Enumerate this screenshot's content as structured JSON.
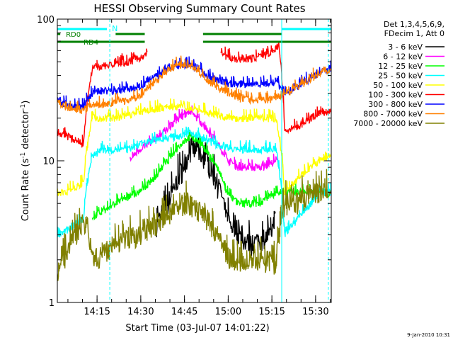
{
  "chart_data": {
    "type": "line",
    "title": "HESSI Observing Summary Count Rates",
    "xlabel": "Start Time (03-Jul-07 14:01:22)",
    "ylabel_main": "Count Rate (s",
    "ylabel_exp1": "-1",
    "ylabel_mid": " detector",
    "ylabel_exp2": "-1",
    "ylabel_end": ")",
    "yscale": "log",
    "ylim": [
      1,
      100
    ],
    "xlim_minutes": [
      0,
      94
    ],
    "y_ticks": [
      {
        "v": 1,
        "label": "1"
      },
      {
        "v": 10,
        "label": "10"
      },
      {
        "v": 100,
        "label": "100"
      }
    ],
    "x_ticks": [
      {
        "m": 13.63,
        "label": "14:15"
      },
      {
        "m": 28.63,
        "label": "14:30"
      },
      {
        "m": 43.63,
        "label": "14:45"
      },
      {
        "m": 58.63,
        "label": "15:00"
      },
      {
        "m": 73.63,
        "label": "15:15"
      },
      {
        "m": 88.63,
        "label": "15:30"
      }
    ],
    "legend_header": [
      "Det 1,3,4,5,6,9,",
      "FDecim 1, Att 0"
    ],
    "series": [
      {
        "name": "3 - 6 keV",
        "color": "#000000",
        "x": [
          0,
          34,
          38,
          42,
          45,
          48,
          51,
          56,
          58,
          62,
          66,
          70,
          73,
          75,
          78
        ],
        "y": [
          null,
          3.5,
          5,
          8,
          11,
          12,
          10,
          6,
          4,
          3,
          2.6,
          2.8,
          3,
          4,
          null
        ]
      },
      {
        "name": "6 - 12 keV",
        "color": "#ff00ff",
        "x": [
          0,
          25,
          28,
          33,
          38,
          42,
          45,
          48,
          51,
          55,
          59,
          62,
          66,
          70,
          73,
          76,
          78
        ],
        "y": [
          null,
          10,
          12,
          14,
          17,
          20,
          22,
          20,
          17,
          13,
          10,
          9,
          9,
          9,
          9.5,
          10,
          null
        ]
      },
      {
        "name": "12 - 25 keV",
        "color": "#00ff00",
        "x": [
          9,
          12,
          16,
          20,
          24,
          28,
          33,
          38,
          42,
          45,
          48,
          52,
          56,
          58,
          62,
          66,
          70,
          72,
          76,
          80,
          86,
          90,
          94
        ],
        "y": [
          null,
          4,
          4.5,
          5,
          5.5,
          6,
          7.5,
          10,
          13,
          14.5,
          14,
          11,
          8,
          6,
          5,
          5,
          5,
          5.5,
          6,
          6,
          6,
          6,
          6
        ]
      },
      {
        "name": "25 - 50 keV",
        "color": "#00ffff",
        "x": [
          0,
          3,
          6,
          9,
          12,
          16,
          20,
          24,
          28,
          33,
          38,
          42,
          45,
          48,
          51,
          55,
          59,
          62,
          66,
          70,
          73,
          75,
          78,
          83,
          87,
          90,
          94
        ],
        "y": [
          3,
          3.2,
          3.5,
          4,
          11,
          12,
          12,
          12,
          13,
          14,
          14.5,
          15,
          16,
          15,
          14,
          13,
          12.5,
          12,
          12,
          12,
          12,
          12,
          3,
          4,
          5,
          6,
          6
        ]
      },
      {
        "name": "50 - 100 keV",
        "color": "#ffff00",
        "x": [
          0,
          3,
          6,
          9,
          12,
          16,
          20,
          24,
          28,
          33,
          38,
          42,
          45,
          48,
          51,
          55,
          59,
          62,
          66,
          70,
          73,
          75,
          78,
          81,
          84,
          87,
          90,
          94
        ],
        "y": [
          6,
          6,
          6.5,
          7,
          20,
          20,
          20,
          21,
          22,
          23,
          24,
          24,
          24,
          23,
          22,
          21,
          20,
          20,
          20,
          20,
          20,
          20,
          6,
          7,
          8,
          9,
          10,
          11
        ]
      },
      {
        "name": "100 - 300 keV",
        "color": "#ff0000",
        "x": [
          0,
          3,
          6,
          9,
          12,
          16,
          20,
          24,
          28,
          30,
          31,
          33,
          36,
          40,
          44,
          48,
          51,
          54,
          56,
          58,
          62,
          66,
          70,
          73,
          75,
          76,
          78,
          81,
          84,
          87,
          90,
          94
        ],
        "y": [
          16,
          15,
          14,
          13,
          45,
          47,
          48,
          50,
          52,
          55,
          60,
          null,
          null,
          null,
          null,
          null,
          null,
          null,
          60,
          55,
          52,
          52,
          55,
          58,
          62,
          65,
          16,
          17,
          18,
          20,
          22,
          22
        ]
      },
      {
        "name": "300 - 800 keV",
        "color": "#0000ff",
        "x": [
          0,
          3,
          6,
          9,
          12,
          16,
          20,
          24,
          28,
          33,
          38,
          42,
          45,
          48,
          51,
          55,
          59,
          62,
          66,
          70,
          73,
          75,
          78,
          81,
          84,
          87,
          90,
          94
        ],
        "y": [
          27,
          25,
          24,
          24,
          30,
          31,
          31,
          32,
          33,
          38,
          45,
          48,
          48,
          45,
          40,
          37,
          35,
          35,
          35,
          35,
          35,
          36,
          30,
          32,
          35,
          38,
          42,
          45
        ]
      },
      {
        "name": "800 - 7000 keV",
        "color": "#ff8000",
        "x": [
          0,
          3,
          6,
          9,
          12,
          16,
          20,
          24,
          28,
          33,
          38,
          42,
          45,
          48,
          51,
          55,
          59,
          62,
          66,
          70,
          73,
          75,
          78,
          81,
          84,
          87,
          90,
          94
        ],
        "y": [
          26,
          24,
          23,
          23,
          25,
          25,
          26,
          27,
          28,
          35,
          44,
          48,
          48,
          44,
          38,
          33,
          30,
          28,
          27,
          27,
          27,
          28,
          30,
          32,
          35,
          38,
          42,
          44
        ]
      },
      {
        "name": "7000 - 20000 keV",
        "color": "#808000",
        "x": [
          0,
          2,
          4,
          6,
          8,
          10,
          12,
          16,
          20,
          24,
          28,
          33,
          38,
          42,
          45,
          48,
          51,
          55,
          59,
          62,
          66,
          70,
          73,
          75,
          78,
          81,
          84,
          87,
          90,
          94
        ],
        "y": [
          1.5,
          2,
          2.5,
          3,
          3.5,
          3.8,
          2,
          2.2,
          2.5,
          2.8,
          3,
          3.5,
          4,
          5,
          5,
          4.5,
          4,
          3,
          2,
          2,
          2,
          2,
          2,
          1.8,
          5,
          5,
          5.5,
          6,
          6,
          6
        ]
      }
    ],
    "annotations": {
      "n_label": "N",
      "rd0_label": "RD0",
      "rd4_label": "RD4",
      "cyan_bars": [
        [
          0,
          17
        ],
        [
          77,
          94
        ]
      ],
      "rd0_bars": [
        [
          0,
          1
        ],
        [
          20,
          30
        ],
        [
          50,
          77
        ]
      ],
      "rd4_bars": [
        [
          0,
          30
        ],
        [
          50,
          94
        ]
      ],
      "cyan_vlines": [
        0,
        18,
        77,
        93
      ],
      "n_position": 18
    },
    "footer_date": "9-Jan-2010 10:31"
  }
}
